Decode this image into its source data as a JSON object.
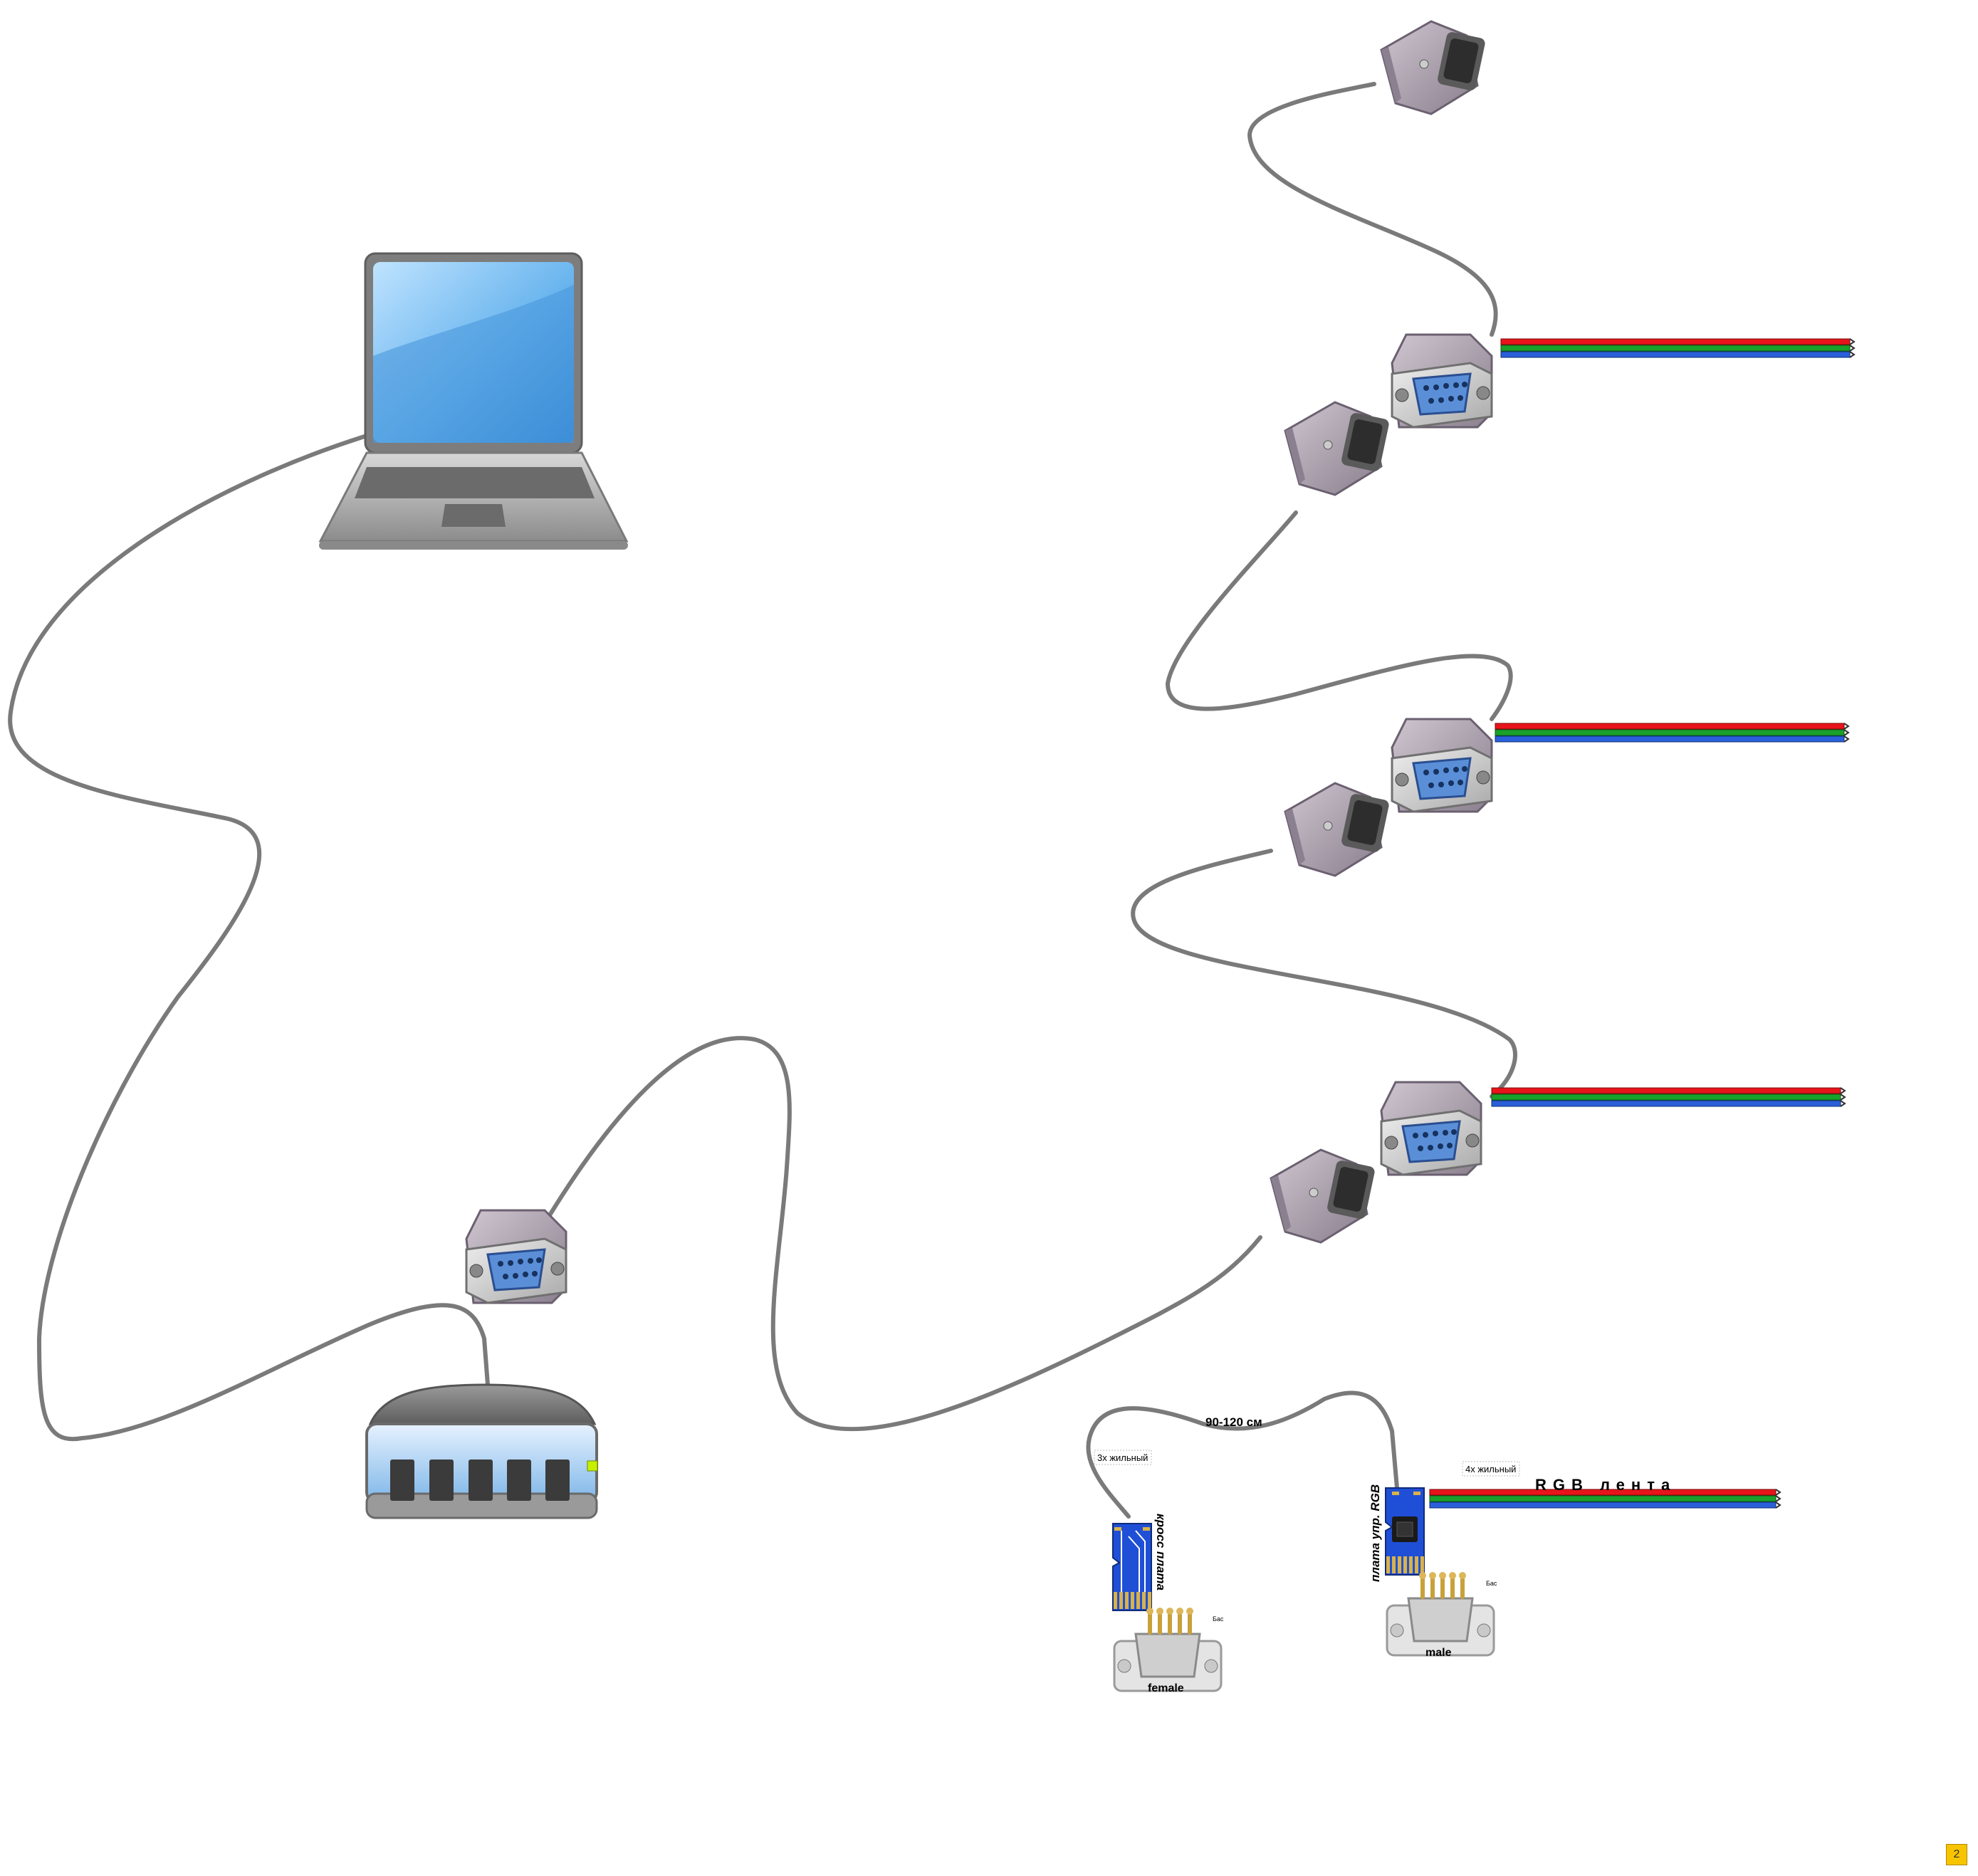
{
  "labels": {
    "length": "90-120 см",
    "wire3": "3х жильный",
    "wire4": "4х жильный",
    "rgb_strip": "RGB лента",
    "cross_board": "кросс плата",
    "rgb_board": "плата упр. RGB",
    "female": "female",
    "male": "male",
    "bas_left": "Бас",
    "bas_right": "Бас"
  },
  "page_number": "2",
  "colors": {
    "cable": "#7a7a7a",
    "wire_red": "#e8141b",
    "wire_green": "#1aa12b",
    "wire_blue": "#2b5fd9",
    "connector_shell": "#a69ba8",
    "board_blue": "#1f4fd6",
    "board_gold": "#d8b24a",
    "badge": "#f7c400"
  },
  "icons": [
    "laptop-icon",
    "network-switch-icon",
    "db9-male-connector-icon",
    "db9-female-connector-icon",
    "rgb-wire-icon",
    "pcb-board-icon"
  ]
}
